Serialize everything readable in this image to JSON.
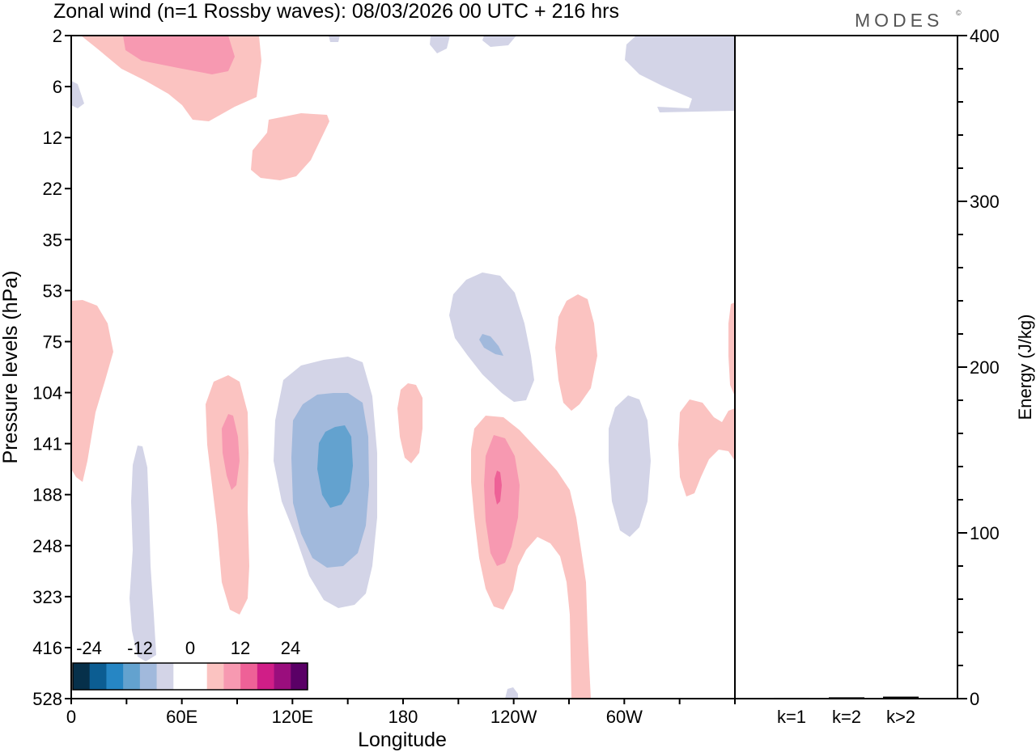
{
  "chart_data": {
    "type": "heatmap",
    "title": "Zonal wind (n=1 Rossby waves):  08/03/2026  00 UTC  + 216 hrs",
    "brand": "MODES",
    "brand_mark": "©",
    "xlabel": "Longitude",
    "ylabel": "Pressure levels (hPa)",
    "y2label": "Energy (J/kg)",
    "x_ticks": [
      {
        "label": "0",
        "lon": 0
      },
      {
        "label": "60E",
        "lon": 60
      },
      {
        "label": "120E",
        "lon": 120
      },
      {
        "label": "180",
        "lon": 180
      },
      {
        "label": "120W",
        "lon": 240
      },
      {
        "label": "60W",
        "lon": 300
      }
    ],
    "xlim": [
      0,
      360
    ],
    "y_levels": [
      "2",
      "6",
      "12",
      "22",
      "35",
      "53",
      "75",
      "104",
      "141",
      "188",
      "248",
      "323",
      "416",
      "528"
    ],
    "y2_ticks": [
      "0",
      "100",
      "200",
      "300",
      "400"
    ],
    "y2lim": [
      0,
      400
    ],
    "energy_bars": {
      "categories": [
        "k=1",
        "k=2",
        "k>2"
      ],
      "values": [
        0.5,
        0.8,
        1.2
      ]
    },
    "colorbar": {
      "labels": [
        "-24",
        "-12",
        "0",
        "12",
        "24"
      ],
      "colors": [
        "#06304a",
        "#0c5d92",
        "#2686c4",
        "#63a2cf",
        "#a1b9dc",
        "#d3d4e7",
        "#ffffff",
        "#ffffff",
        "#fbc3c1",
        "#f799b1",
        "#ee6197",
        "#d01e87",
        "#9a0e7d",
        "#5a0066"
      ]
    },
    "shading_colors": {
      "neg1": "#d3d4e7",
      "neg2": "#a1b9dc",
      "neg3": "#63a2cf",
      "pos1": "#fbc3c1",
      "pos2": "#f799b1",
      "pos3": "#ee6197"
    },
    "features": [
      {
        "sign": "pos",
        "level": 1,
        "lon_center": 42,
        "pressure_center": "2"
      },
      {
        "sign": "pos",
        "level": 2,
        "lon_center": 45,
        "pressure_center": "2"
      },
      {
        "sign": "pos",
        "level": 1,
        "lon_center": 107,
        "pressure_center": "12"
      },
      {
        "sign": "pos",
        "level": 1,
        "lon_center": 12,
        "pressure_center": "104"
      },
      {
        "sign": "neg",
        "level": 1,
        "lon_center": 37,
        "pressure_center": "248"
      },
      {
        "sign": "pos",
        "level": 1,
        "lon_center": 85,
        "pressure_center": "188"
      },
      {
        "sign": "pos",
        "level": 2,
        "lon_center": 86,
        "pressure_center": "141"
      },
      {
        "sign": "neg",
        "level": 1,
        "lon_center": 139,
        "pressure_center": "188"
      },
      {
        "sign": "neg",
        "level": 2,
        "lon_center": 140,
        "pressure_center": "188"
      },
      {
        "sign": "neg",
        "level": 3,
        "lon_center": 143,
        "pressure_center": "141"
      },
      {
        "sign": "pos",
        "level": 1,
        "lon_center": 181,
        "pressure_center": "141"
      },
      {
        "sign": "neg",
        "level": 1,
        "lon_center": 229,
        "pressure_center": "75"
      },
      {
        "sign": "neg",
        "level": 2,
        "lon_center": 228,
        "pressure_center": "75"
      },
      {
        "sign": "pos",
        "level": 1,
        "lon_center": 269,
        "pressure_center": "75"
      },
      {
        "sign": "pos",
        "level": 1,
        "lon_center": 245,
        "pressure_center": "248"
      },
      {
        "sign": "pos",
        "level": 2,
        "lon_center": 232,
        "pressure_center": "188"
      },
      {
        "sign": "pos",
        "level": 3,
        "lon_center": 231,
        "pressure_center": "188"
      },
      {
        "sign": "neg",
        "level": 1,
        "lon_center": 302,
        "pressure_center": "188"
      },
      {
        "sign": "pos",
        "level": 1,
        "lon_center": 340,
        "pressure_center": "141"
      },
      {
        "sign": "neg",
        "level": 1,
        "lon_center": 330,
        "pressure_center": "2"
      }
    ]
  }
}
